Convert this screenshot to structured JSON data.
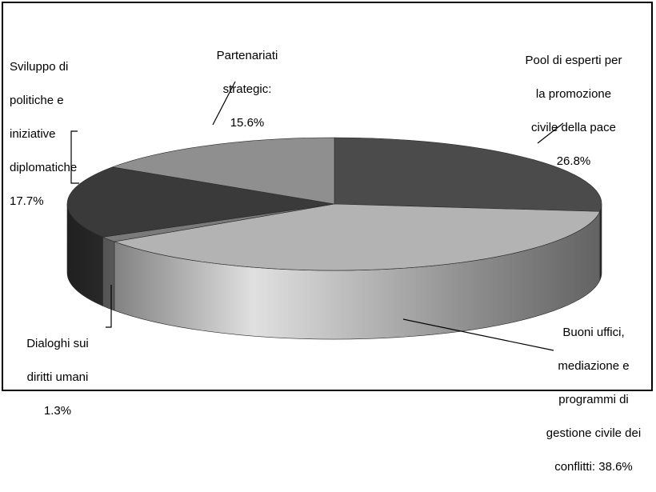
{
  "chart_data": {
    "type": "pie",
    "title": "",
    "slices": [
      {
        "label": [
          "Pool di esperti per",
          "la promozione",
          "civile della pace",
          "26.8%"
        ],
        "value": 26.8,
        "color": "#4b4b4b"
      },
      {
        "label": [
          "Buoni uffici,",
          "mediazione e",
          "programmi di",
          "gestione civile dei",
          "conflitti: 38.6%"
        ],
        "value": 38.6,
        "color": "#b3b3b3"
      },
      {
        "label": [
          "Dialoghi sui",
          "diritti umani",
          "1.3%"
        ],
        "value": 1.3,
        "color": "#7a7a7a"
      },
      {
        "label": [
          "Sviluppo di",
          "politiche e",
          "iniziative",
          "diplomatiche",
          "17.7%"
        ],
        "value": 17.7,
        "color": "#3a3a3a"
      },
      {
        "label": [
          "Partenariati",
          "strategic:",
          "15.6%"
        ],
        "value": 15.6,
        "color": "#8f8f8f"
      }
    ]
  }
}
